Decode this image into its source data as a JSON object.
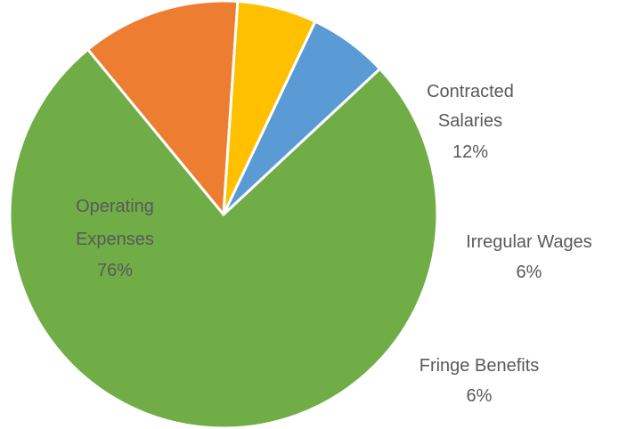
{
  "chart_data": {
    "type": "pie",
    "title": "",
    "slices": [
      {
        "label_lines": [
          "Operating",
          "Expenses"
        ],
        "value": 76,
        "pct_label": "76%",
        "color": "#70ad47"
      },
      {
        "label_lines": [
          "Contracted",
          "Salaries"
        ],
        "value": 12,
        "pct_label": "12%",
        "color": "#ed7d31"
      },
      {
        "label_lines": [
          "Irregular Wages"
        ],
        "value": 6,
        "pct_label": "6%",
        "color": "#ffc000"
      },
      {
        "label_lines": [
          "Fringe Benefits"
        ],
        "value": 6,
        "pct_label": "6%",
        "color": "#5b9bd5"
      }
    ],
    "start_angle_deg": -43,
    "direction": "clockwise",
    "legend": "none",
    "data_labels": "category name and percentage"
  }
}
